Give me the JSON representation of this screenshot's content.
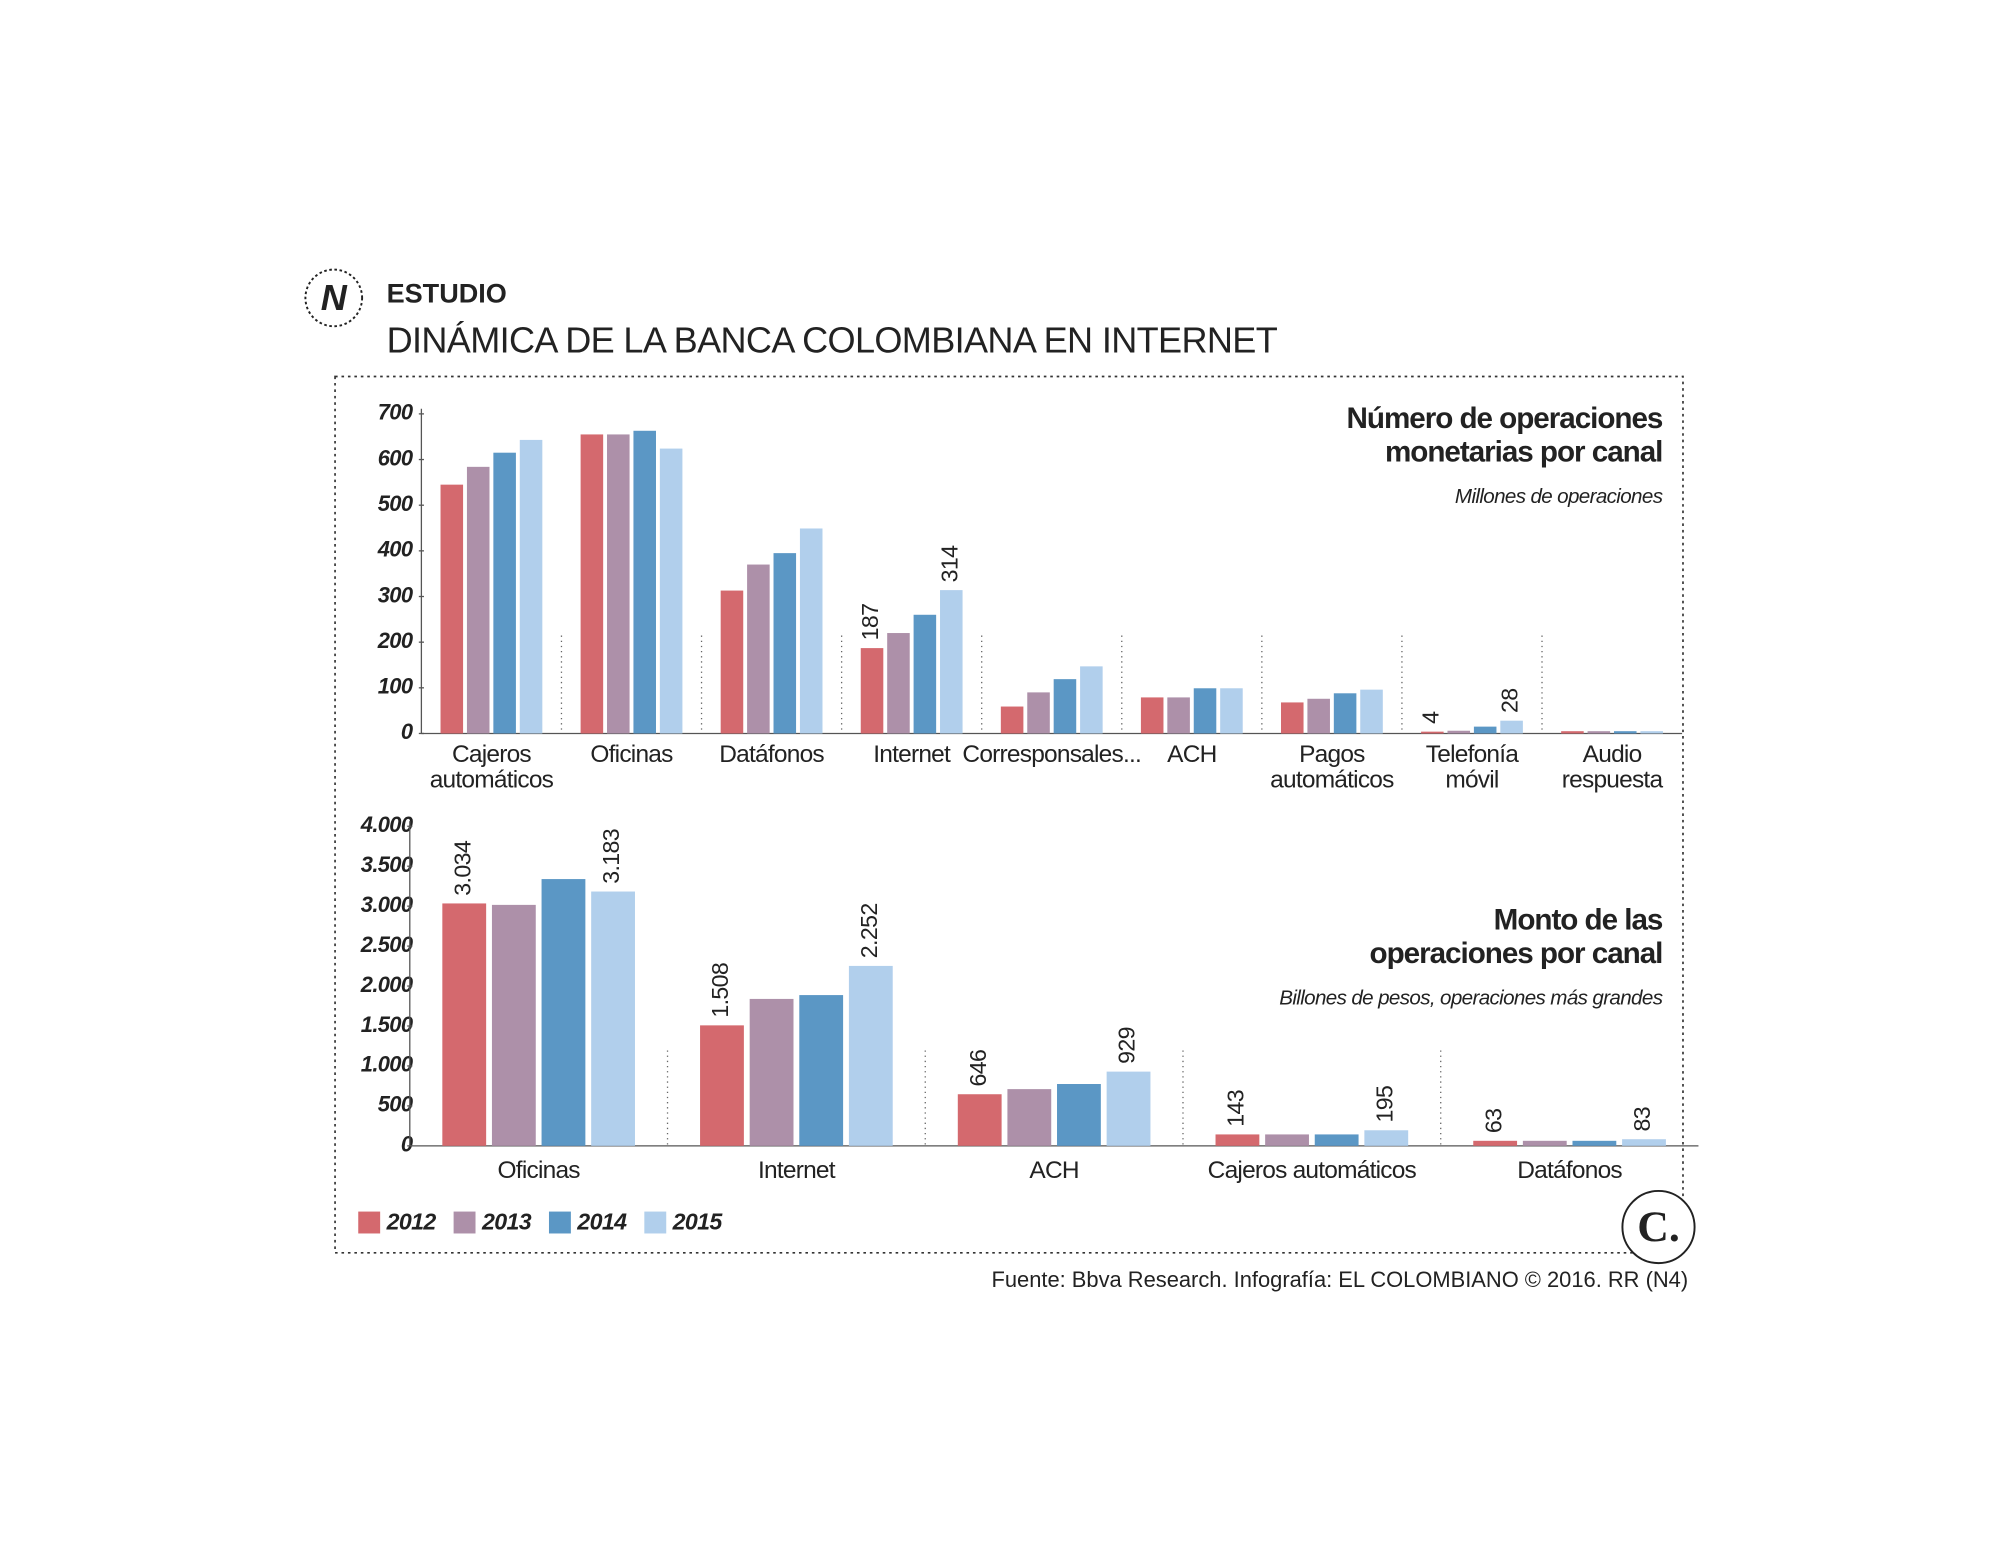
{
  "header": {
    "icon": "N",
    "section": "ESTUDIO",
    "title": "DINÁMICA DE LA BANCA COLOMBIANA EN INTERNET"
  },
  "chart_data": [
    {
      "type": "bar",
      "title": [
        "Número de operaciones",
        "monetarias por canal"
      ],
      "subtitle": "Millones de operaciones",
      "categories": [
        [
          "Cajeros",
          "automáticos"
        ],
        [
          "Oficinas"
        ],
        [
          "Datáfonos"
        ],
        [
          "Internet"
        ],
        [
          "Corresponsales..."
        ],
        [
          "ACH"
        ],
        [
          "Pagos",
          "automáticos"
        ],
        [
          "Telefonía",
          "móvil"
        ],
        [
          "Audio",
          "respuesta"
        ]
      ],
      "series": [
        {
          "name": "2012",
          "color": "#d4696e",
          "values": [
            545,
            655,
            313,
            187,
            59,
            79,
            68,
            4,
            5
          ],
          "value_labels": [
            null,
            null,
            null,
            "187",
            null,
            null,
            null,
            "4",
            null
          ]
        },
        {
          "name": "2013",
          "color": "#ad90a9",
          "values": [
            584,
            655,
            370,
            220,
            90,
            79,
            76,
            6,
            5
          ],
          "value_labels": [
            null,
            null,
            null,
            null,
            null,
            null,
            null,
            null,
            null
          ]
        },
        {
          "name": "2014",
          "color": "#5b97c5",
          "values": [
            615,
            663,
            395,
            260,
            119,
            99,
            88,
            15,
            5
          ],
          "value_labels": [
            null,
            null,
            null,
            null,
            null,
            null,
            null,
            null,
            null
          ]
        },
        {
          "name": "2015",
          "color": "#b1cfec",
          "values": [
            643,
            624,
            449,
            314,
            147,
            99,
            96,
            28,
            5
          ],
          "value_labels": [
            null,
            null,
            null,
            "314",
            null,
            null,
            null,
            "28",
            null
          ]
        }
      ],
      "ylim": [
        0,
        700
      ],
      "yticks": [
        0,
        100,
        200,
        300,
        400,
        500,
        600,
        700
      ]
    },
    {
      "type": "bar",
      "title": [
        "Monto de las",
        "operaciones por canal"
      ],
      "subtitle": "Billones de pesos, operaciones más grandes",
      "categories": [
        "Oficinas",
        "Internet",
        "ACH",
        "Cajeros automáticos",
        "Datáfonos"
      ],
      "series": [
        {
          "color": "#d4696e",
          "values": [
            3034,
            1508,
            646,
            143,
            63
          ],
          "value_labels": [
            "3.034",
            "1.508",
            "646",
            "143",
            "63"
          ]
        },
        {
          "color": "#ad90a9",
          "values": [
            3016,
            1839,
            710,
            143,
            63
          ],
          "value_labels": [
            null,
            null,
            null,
            null,
            null
          ]
        },
        {
          "color": "#5b97c5",
          "values": [
            3339,
            1887,
            774,
            143,
            63
          ],
          "value_labels": [
            null,
            null,
            null,
            null,
            null
          ]
        },
        {
          "color": "#b1cfec",
          "values": [
            3183,
            2252,
            929,
            195,
            83
          ],
          "value_labels": [
            "3.183",
            "2.252",
            "929",
            "195",
            "83"
          ]
        }
      ],
      "ylim": [
        0,
        4000
      ],
      "yticks": [
        0,
        500,
        {
          "value": 1000,
          "label": "1.000"
        },
        {
          "value": 1500,
          "label": "1.500"
        },
        {
          "value": 2000,
          "label": "2.000"
        },
        {
          "value": 2500,
          "label": "2.500"
        },
        {
          "value": 3000,
          "label": "3.000"
        },
        {
          "value": 3500,
          "label": "3.500"
        },
        {
          "value": 4000,
          "label": "4.000"
        }
      ]
    }
  ],
  "footer": {
    "source": "Fuente: Bbva Research. Infografía: EL COLOMBIANO © 2016. RR (N4)",
    "logo": "C."
  }
}
